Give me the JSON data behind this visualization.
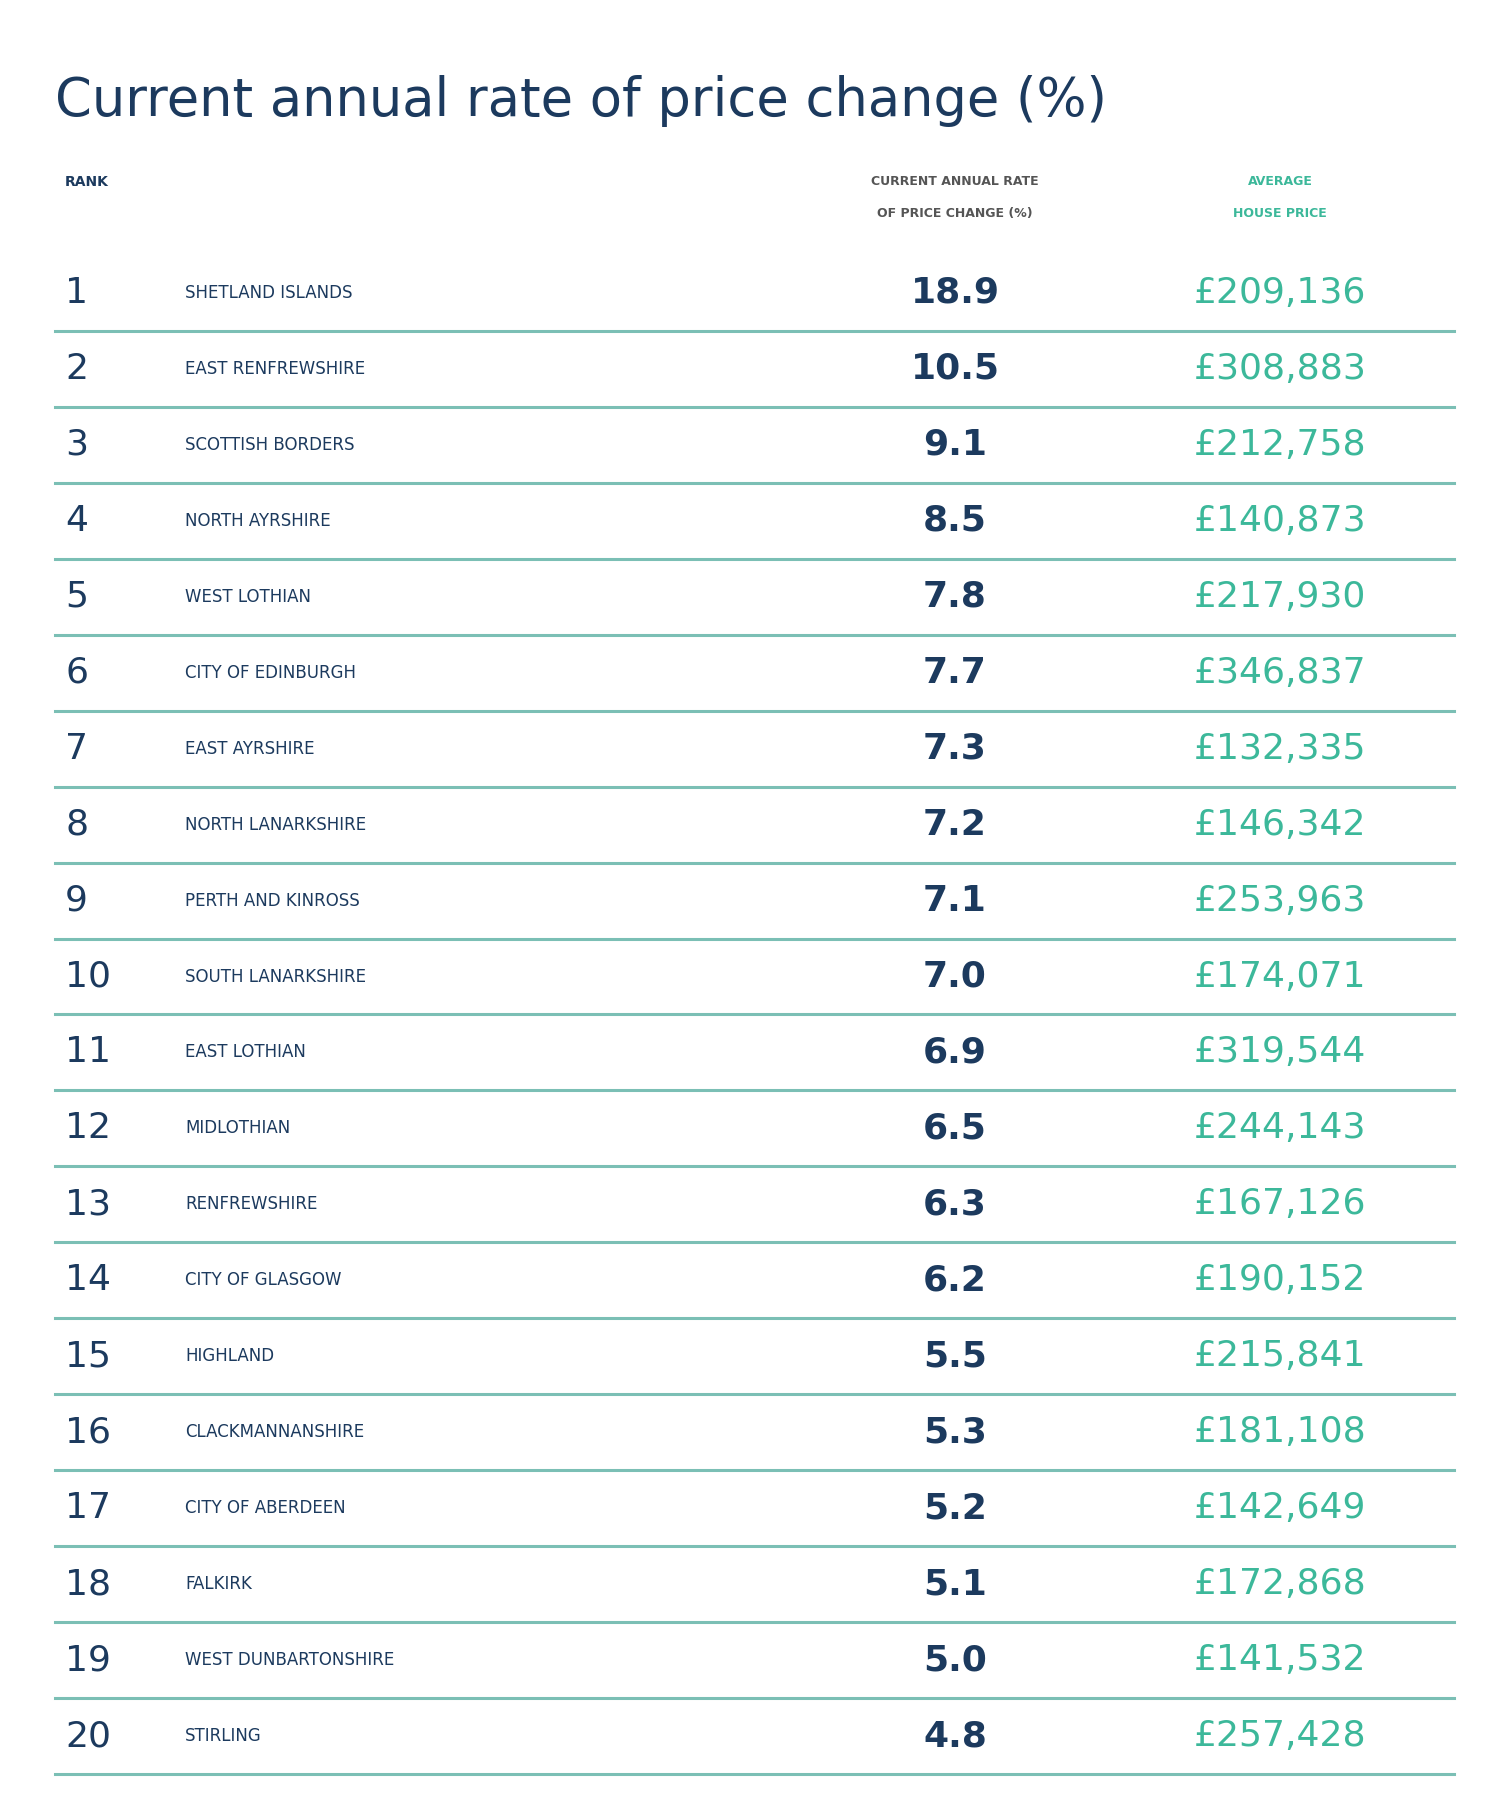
{
  "title": "Current annual rate of price change (%)",
  "title_color": "#1c3a5e",
  "title_fontsize": 38,
  "header_rank": "RANK",
  "header_rate": "CURRENT ANNUAL RATE\nOF PRICE CHANGE (%)",
  "header_price": "AVERAGE\nHOUSE PRICE",
  "header_color_rank": "#1c3a5e",
  "header_color_rate": "#555555",
  "header_color_price": "#3cb89a",
  "bg_color": "#ffffff",
  "rank_color": "#1c3a5e",
  "region_color": "#1c3a5e",
  "rate_color": "#1c3a5e",
  "price_color": "#3cb89a",
  "divider_color": "#7bbfb5",
  "rows": [
    {
      "rank": "1",
      "region": "SHETLAND ISLANDS",
      "rate": "18.9",
      "price": "£209,136"
    },
    {
      "rank": "2",
      "region": "EAST RENFREWSHIRE",
      "rate": "10.5",
      "price": "£308,883"
    },
    {
      "rank": "3",
      "region": "SCOTTISH BORDERS",
      "rate": "9.1",
      "price": "£212,758"
    },
    {
      "rank": "4",
      "region": "NORTH AYRSHIRE",
      "rate": "8.5",
      "price": "£140,873"
    },
    {
      "rank": "5",
      "region": "WEST LOTHIAN",
      "rate": "7.8",
      "price": "£217,930"
    },
    {
      "rank": "6",
      "region": "CITY OF EDINBURGH",
      "rate": "7.7",
      "price": "£346,837"
    },
    {
      "rank": "7",
      "region": "EAST AYRSHIRE",
      "rate": "7.3",
      "price": "£132,335"
    },
    {
      "rank": "8",
      "region": "NORTH LANARKSHIRE",
      "rate": "7.2",
      "price": "£146,342"
    },
    {
      "rank": "9",
      "region": "PERTH AND KINROSS",
      "rate": "7.1",
      "price": "£253,963"
    },
    {
      "rank": "10",
      "region": "SOUTH LANARKSHIRE",
      "rate": "7.0",
      "price": "£174,071"
    },
    {
      "rank": "11",
      "region": "EAST LOTHIAN",
      "rate": "6.9",
      "price": "£319,544"
    },
    {
      "rank": "12",
      "region": "MIDLOTHIAN",
      "rate": "6.5",
      "price": "£244,143"
    },
    {
      "rank": "13",
      "region": "RENFREWSHIRE",
      "rate": "6.3",
      "price": "£167,126"
    },
    {
      "rank": "14",
      "region": "CITY OF GLASGOW",
      "rate": "6.2",
      "price": "£190,152"
    },
    {
      "rank": "15",
      "region": "HIGHLAND",
      "rate": "5.5",
      "price": "£215,841"
    },
    {
      "rank": "16",
      "region": "CLACKMANNANSHIRE",
      "rate": "5.3",
      "price": "£181,108"
    },
    {
      "rank": "17",
      "region": "CITY OF ABERDEEN",
      "rate": "5.2",
      "price": "£142,649"
    },
    {
      "rank": "18",
      "region": "FALKIRK",
      "rate": "5.1",
      "price": "£172,868"
    },
    {
      "rank": "19",
      "region": "WEST DUNBARTONSHIRE",
      "rate": "5.0",
      "price": "£141,532"
    },
    {
      "rank": "20",
      "region": "STIRLING",
      "rate": "4.8",
      "price": "£257,428"
    }
  ]
}
